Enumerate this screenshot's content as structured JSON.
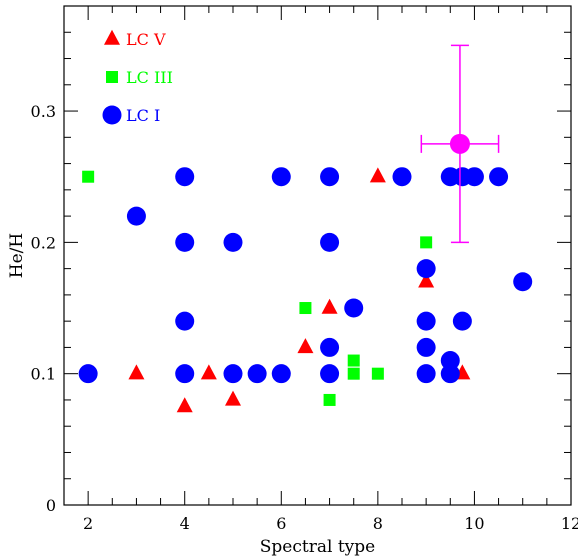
{
  "chart_data": {
    "type": "scatter",
    "xlabel": "Spectral type",
    "ylabel": "He/H",
    "xlim": [
      1.5,
      12
    ],
    "ylim": [
      0,
      0.38
    ],
    "x_ticks": [
      "2",
      "4",
      "6",
      "8",
      "10",
      "12"
    ],
    "y_ticks": [
      "0",
      "0.1",
      "0.2",
      "0.3"
    ],
    "grid": false,
    "legend_position": "top-left",
    "series": [
      {
        "name": "LC V",
        "marker": "triangle",
        "color": "#ff0000",
        "points": [
          [
            3,
            0.1
          ],
          [
            4,
            0.075
          ],
          [
            4.5,
            0.1
          ],
          [
            5,
            0.08
          ],
          [
            6.5,
            0.12
          ],
          [
            7,
            0.15
          ],
          [
            8,
            0.25
          ],
          [
            9,
            0.17
          ],
          [
            9.75,
            0.1
          ]
        ]
      },
      {
        "name": "LC III",
        "marker": "square",
        "color": "#00ff00",
        "points": [
          [
            2,
            0.25
          ],
          [
            6.5,
            0.15
          ],
          [
            7,
            0.08
          ],
          [
            7.5,
            0.11
          ],
          [
            7.5,
            0.1
          ],
          [
            8,
            0.1
          ],
          [
            9,
            0.2
          ]
        ]
      },
      {
        "name": "LC I",
        "marker": "circle",
        "color": "#0000ff",
        "points": [
          [
            2,
            0.1
          ],
          [
            3,
            0.22
          ],
          [
            4,
            0.25
          ],
          [
            4,
            0.2
          ],
          [
            4,
            0.14
          ],
          [
            4,
            0.1
          ],
          [
            5,
            0.2
          ],
          [
            5,
            0.1
          ],
          [
            5.5,
            0.1
          ],
          [
            6,
            0.25
          ],
          [
            6,
            0.1
          ],
          [
            7,
            0.25
          ],
          [
            7,
            0.2
          ],
          [
            7,
            0.12
          ],
          [
            7,
            0.1
          ],
          [
            7.5,
            0.15
          ],
          [
            8.5,
            0.25
          ],
          [
            9,
            0.18
          ],
          [
            9,
            0.14
          ],
          [
            9,
            0.12
          ],
          [
            9,
            0.1
          ],
          [
            9.5,
            0.25
          ],
          [
            9.5,
            0.11
          ],
          [
            9.5,
            0.1
          ],
          [
            9.75,
            0.25
          ],
          [
            9.75,
            0.14
          ],
          [
            10,
            0.25
          ],
          [
            10.5,
            0.25
          ],
          [
            11,
            0.17
          ]
        ]
      }
    ],
    "typical_error": {
      "color": "#ff00ff",
      "x": 9.7,
      "y": 0.275,
      "x_err": [
        0.8,
        0.8
      ],
      "y_err": [
        0.075,
        0.075
      ]
    }
  }
}
